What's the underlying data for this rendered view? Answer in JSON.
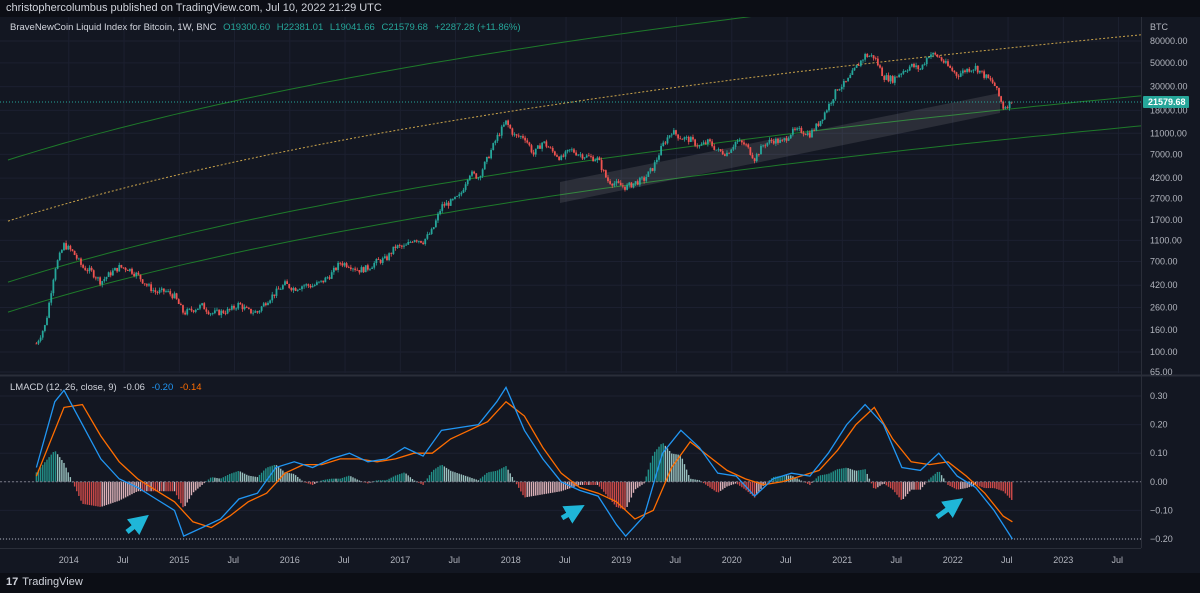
{
  "header": {
    "publisher_line": "christophercolumbus published on TradingView.com, Jul 10, 2022 21:29 UTC"
  },
  "footer": {
    "brand_logo": "17",
    "brand_name": "TradingView"
  },
  "main_legend": {
    "symbol": "BraveNewCoin Liquid Index for Bitcoin, 1W, BNC",
    "open": "O19300.60",
    "high": "H22381.01",
    "low": "L19041.66",
    "close": "C21579.68",
    "change": "+2287.28 (+11.86%)"
  },
  "macd_legend": {
    "name": "LMACD (12, 26, close, 9)",
    "hist": "-0.06",
    "macd": "-0.20",
    "signal": "-0.14"
  },
  "colors": {
    "background": "#131722",
    "up": "#26a69a",
    "down": "#ef5350",
    "channel": "#1e7a2a",
    "mid_dotted": "#c8a24a",
    "macd": "#2196f3",
    "signal": "#ff6d00",
    "arrow": "#1fb6d8",
    "price_tag": "#26a69a"
  },
  "chart_data": [
    {
      "type": "candlestick",
      "title": "BraveNewCoin Liquid Index for Bitcoin, 1W, BNC",
      "y_scale": "log",
      "y_unit": "BTC",
      "y_ticks": [
        65,
        100,
        160,
        260,
        420,
        700,
        1100,
        1700,
        2700,
        4200,
        7000,
        11000,
        18000,
        30000,
        50000,
        80000
      ],
      "x_ticks": [
        "2014",
        "Jul",
        "2015",
        "Jul",
        "2016",
        "Jul",
        "2017",
        "Jul",
        "2018",
        "Jul",
        "2019",
        "Jul",
        "2020",
        "Jul",
        "2021",
        "Jul",
        "2022",
        "Jul",
        "2023",
        "Jul"
      ],
      "last_price_label": "21579.68",
      "price_path": [
        [
          "2013-09",
          120
        ],
        [
          "2013-10",
          180
        ],
        [
          "2013-11",
          600
        ],
        [
          "2013-12",
          1000
        ],
        [
          "2014-01",
          850
        ],
        [
          "2014-02",
          620
        ],
        [
          "2014-03",
          560
        ],
        [
          "2014-04",
          450
        ],
        [
          "2014-05",
          540
        ],
        [
          "2014-06",
          620
        ],
        [
          "2014-07",
          600
        ],
        [
          "2014-08",
          520
        ],
        [
          "2014-09",
          420
        ],
        [
          "2014-10",
          360
        ],
        [
          "2014-11",
          370
        ],
        [
          "2014-12",
          330
        ],
        [
          "2015-01",
          230
        ],
        [
          "2015-02",
          250
        ],
        [
          "2015-03",
          270
        ],
        [
          "2015-04",
          230
        ],
        [
          "2015-05",
          235
        ],
        [
          "2015-06",
          245
        ],
        [
          "2015-07",
          280
        ],
        [
          "2015-08",
          240
        ],
        [
          "2015-09",
          235
        ],
        [
          "2015-10",
          300
        ],
        [
          "2015-11",
          360
        ],
        [
          "2015-12",
          430
        ],
        [
          "2016-01",
          390
        ],
        [
          "2016-02",
          420
        ],
        [
          "2016-03",
          415
        ],
        [
          "2016-04",
          450
        ],
        [
          "2016-05",
          530
        ],
        [
          "2016-06",
          680
        ],
        [
          "2016-07",
          650
        ],
        [
          "2016-08",
          580
        ],
        [
          "2016-09",
          610
        ],
        [
          "2016-10",
          700
        ],
        [
          "2016-11",
          740
        ],
        [
          "2016-12",
          960
        ],
        [
          "2017-01",
          950
        ],
        [
          "2017-02",
          1150
        ],
        [
          "2017-03",
          1080
        ],
        [
          "2017-04",
          1350
        ],
        [
          "2017-05",
          2300
        ],
        [
          "2017-06",
          2500
        ],
        [
          "2017-07",
          2850
        ],
        [
          "2017-08",
          4700
        ],
        [
          "2017-09",
          4300
        ],
        [
          "2017-10",
          6400
        ],
        [
          "2017-11",
          10000
        ],
        [
          "2017-12",
          14000
        ],
        [
          "2018-01",
          10200
        ],
        [
          "2018-02",
          10300
        ],
        [
          "2018-03",
          7000
        ],
        [
          "2018-04",
          9200
        ],
        [
          "2018-05",
          7500
        ],
        [
          "2018-06",
          6400
        ],
        [
          "2018-07",
          7700
        ],
        [
          "2018-08",
          7000
        ],
        [
          "2018-09",
          6600
        ],
        [
          "2018-10",
          6300
        ],
        [
          "2018-11",
          4000
        ],
        [
          "2018-12",
          3700
        ],
        [
          "2019-01",
          3450
        ],
        [
          "2019-02",
          3800
        ],
        [
          "2019-03",
          4100
        ],
        [
          "2019-04",
          5300
        ],
        [
          "2019-05",
          8500
        ],
        [
          "2019-06",
          11500
        ],
        [
          "2019-07",
          10000
        ],
        [
          "2019-08",
          9600
        ],
        [
          "2019-09",
          8300
        ],
        [
          "2019-10",
          9200
        ],
        [
          "2019-11",
          7500
        ],
        [
          "2019-12",
          7200
        ],
        [
          "2020-01",
          9300
        ],
        [
          "2020-02",
          8600
        ],
        [
          "2020-03",
          6400
        ],
        [
          "2020-04",
          8700
        ],
        [
          "2020-05",
          9500
        ],
        [
          "2020-06",
          9100
        ],
        [
          "2020-07",
          11300
        ],
        [
          "2020-08",
          11700
        ],
        [
          "2020-09",
          10800
        ],
        [
          "2020-10",
          13800
        ],
        [
          "2020-11",
          19700
        ],
        [
          "2020-12",
          29000
        ],
        [
          "2021-01",
          33000
        ],
        [
          "2021-02",
          45000
        ],
        [
          "2021-03",
          58800
        ],
        [
          "2021-04",
          57000
        ],
        [
          "2021-05",
          37300
        ],
        [
          "2021-06",
          35000
        ],
        [
          "2021-07",
          41500
        ],
        [
          "2021-08",
          47100
        ],
        [
          "2021-09",
          43800
        ],
        [
          "2021-10",
          61300
        ],
        [
          "2021-11",
          57000
        ],
        [
          "2021-12",
          46200
        ],
        [
          "2022-01",
          38500
        ],
        [
          "2022-02",
          43200
        ],
        [
          "2022-03",
          45500
        ],
        [
          "2022-04",
          37700
        ],
        [
          "2022-05",
          31800
        ],
        [
          "2022-06",
          19300
        ],
        [
          "2022-07",
          21579.68
        ]
      ]
    },
    {
      "type": "line",
      "title": "LMACD (12, 26, close, 9)",
      "y_ticks": [
        0.3,
        0.2,
        0.1,
        0.0,
        -0.1,
        -0.2
      ],
      "series": [
        {
          "name": "",
          "values": []
        },
        {
          "name": "",
          "values": []
        }
      ],
      "macd_path": [
        [
          "2013-09",
          0.05
        ],
        [
          "2013-11",
          0.28
        ],
        [
          "2013-12",
          0.32
        ],
        [
          "2014-02",
          0.2
        ],
        [
          "2014-04",
          0.08
        ],
        [
          "2014-06",
          0.01
        ],
        [
          "2014-08",
          -0.02
        ],
        [
          "2014-10",
          -0.06
        ],
        [
          "2014-12",
          -0.1
        ],
        [
          "2015-01",
          -0.19
        ],
        [
          "2015-03",
          -0.16
        ],
        [
          "2015-05",
          -0.13
        ],
        [
          "2015-07",
          -0.06
        ],
        [
          "2015-09",
          -0.04
        ],
        [
          "2015-11",
          0.05
        ],
        [
          "2016-01",
          0.07
        ],
        [
          "2016-03",
          0.05
        ],
        [
          "2016-05",
          0.08
        ],
        [
          "2016-07",
          0.1
        ],
        [
          "2016-09",
          0.07
        ],
        [
          "2016-11",
          0.08
        ],
        [
          "2017-01",
          0.12
        ],
        [
          "2017-03",
          0.09
        ],
        [
          "2017-05",
          0.18
        ],
        [
          "2017-07",
          0.19
        ],
        [
          "2017-09",
          0.2
        ],
        [
          "2017-11",
          0.28
        ],
        [
          "2017-12",
          0.33
        ],
        [
          "2018-02",
          0.18
        ],
        [
          "2018-04",
          0.08
        ],
        [
          "2018-06",
          0.0
        ],
        [
          "2018-08",
          -0.03
        ],
        [
          "2018-10",
          -0.05
        ],
        [
          "2018-12",
          -0.15
        ],
        [
          "2019-01",
          -0.19
        ],
        [
          "2019-03",
          -0.12
        ],
        [
          "2019-05",
          0.1
        ],
        [
          "2019-07",
          0.18
        ],
        [
          "2019-09",
          0.12
        ],
        [
          "2019-11",
          0.03
        ],
        [
          "2020-01",
          0.02
        ],
        [
          "2020-03",
          -0.05
        ],
        [
          "2020-05",
          0.01
        ],
        [
          "2020-07",
          0.03
        ],
        [
          "2020-09",
          0.02
        ],
        [
          "2020-11",
          0.1
        ],
        [
          "2021-01",
          0.2
        ],
        [
          "2021-03",
          0.27
        ],
        [
          "2021-05",
          0.2
        ],
        [
          "2021-07",
          0.05
        ],
        [
          "2021-09",
          0.04
        ],
        [
          "2021-11",
          0.1
        ],
        [
          "2022-01",
          0.02
        ],
        [
          "2022-03",
          -0.02
        ],
        [
          "2022-05",
          -0.1
        ],
        [
          "2022-07",
          -0.2
        ]
      ],
      "signal_path": [
        [
          "2013-09",
          0.02
        ],
        [
          "2013-12",
          0.26
        ],
        [
          "2014-02",
          0.27
        ],
        [
          "2014-04",
          0.16
        ],
        [
          "2014-06",
          0.07
        ],
        [
          "2014-08",
          0.01
        ],
        [
          "2014-10",
          -0.03
        ],
        [
          "2014-12",
          -0.07
        ],
        [
          "2015-02",
          -0.14
        ],
        [
          "2015-04",
          -0.16
        ],
        [
          "2015-06",
          -0.12
        ],
        [
          "2015-08",
          -0.07
        ],
        [
          "2015-10",
          -0.04
        ],
        [
          "2015-12",
          0.03
        ],
        [
          "2016-02",
          0.06
        ],
        [
          "2016-04",
          0.06
        ],
        [
          "2016-06",
          0.08
        ],
        [
          "2016-08",
          0.08
        ],
        [
          "2016-10",
          0.07
        ],
        [
          "2016-12",
          0.08
        ],
        [
          "2017-02",
          0.1
        ],
        [
          "2017-04",
          0.1
        ],
        [
          "2017-06",
          0.15
        ],
        [
          "2017-08",
          0.18
        ],
        [
          "2017-10",
          0.21
        ],
        [
          "2017-12",
          0.28
        ],
        [
          "2018-02",
          0.23
        ],
        [
          "2018-04",
          0.12
        ],
        [
          "2018-06",
          0.03
        ],
        [
          "2018-08",
          -0.02
        ],
        [
          "2018-10",
          -0.04
        ],
        [
          "2018-12",
          -0.07
        ],
        [
          "2019-02",
          -0.13
        ],
        [
          "2019-04",
          -0.1
        ],
        [
          "2019-06",
          0.05
        ],
        [
          "2019-08",
          0.14
        ],
        [
          "2019-10",
          0.09
        ],
        [
          "2019-12",
          0.04
        ],
        [
          "2020-02",
          0.01
        ],
        [
          "2020-04",
          -0.01
        ],
        [
          "2020-06",
          0.0
        ],
        [
          "2020-08",
          0.02
        ],
        [
          "2020-10",
          0.04
        ],
        [
          "2020-12",
          0.11
        ],
        [
          "2021-02",
          0.2
        ],
        [
          "2021-04",
          0.26
        ],
        [
          "2021-06",
          0.15
        ],
        [
          "2021-08",
          0.07
        ],
        [
          "2021-10",
          0.06
        ],
        [
          "2021-12",
          0.07
        ],
        [
          "2022-02",
          0.02
        ],
        [
          "2022-04",
          -0.04
        ],
        [
          "2022-06",
          -0.12
        ],
        [
          "2022-07",
          -0.14
        ]
      ],
      "hist_last": -0.06
    }
  ]
}
